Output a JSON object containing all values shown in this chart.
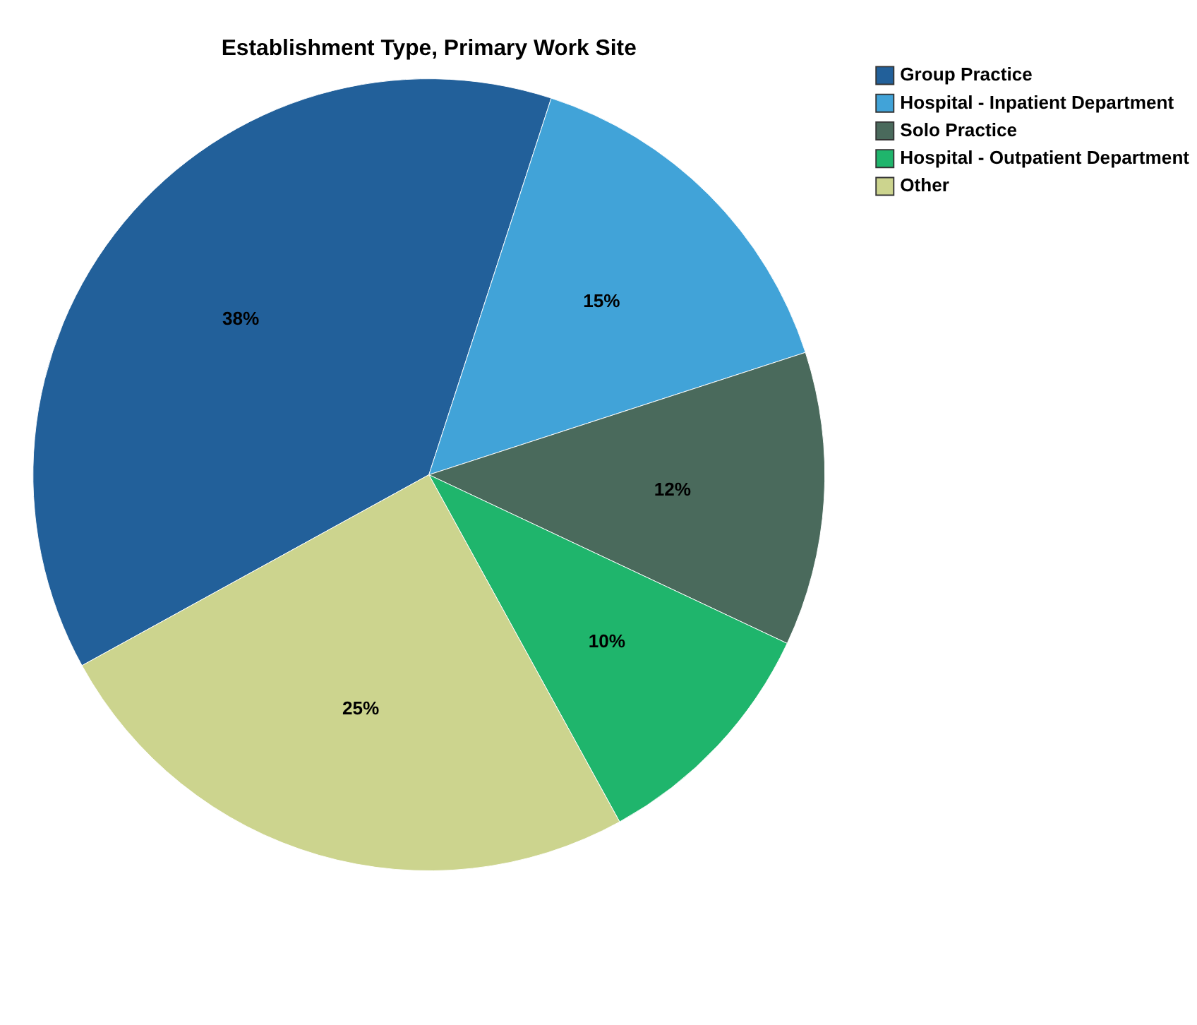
{
  "chart_data": {
    "type": "pie",
    "title": "Establishment Type, Primary Work Site",
    "categories": [
      "Group Practice",
      "Hospital - Inpatient Department",
      "Solo Practice",
      "Hospital - Outpatient Department",
      "Other"
    ],
    "values": [
      38,
      15,
      12,
      10,
      25
    ],
    "colors": [
      "#22609a",
      "#41a3d8",
      "#4a6a5c",
      "#1fb56c",
      "#ccd48e"
    ],
    "value_labels": [
      "38%",
      "15%",
      "12%",
      "10%",
      "25%"
    ],
    "legend": "top right"
  }
}
